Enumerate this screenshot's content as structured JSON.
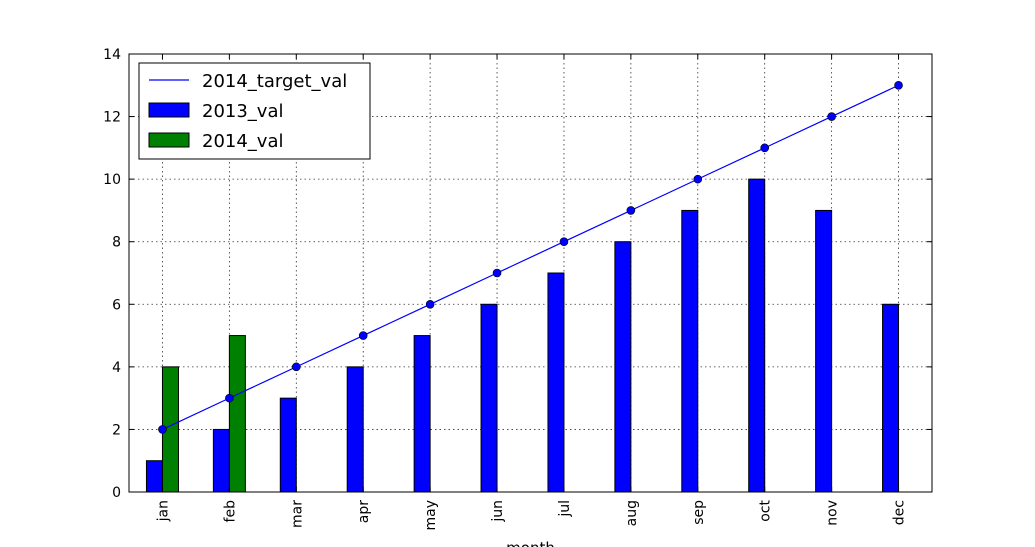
{
  "chart_data": {
    "type": "bar",
    "categories": [
      "jan",
      "feb",
      "mar",
      "apr",
      "may",
      "jun",
      "jul",
      "aug",
      "sep",
      "oct",
      "nov",
      "dec"
    ],
    "series": [
      {
        "name": "2013_val",
        "kind": "bar",
        "color": "#0000ff",
        "values": [
          1,
          2,
          3,
          4,
          5,
          6,
          7,
          8,
          9,
          10,
          9,
          6
        ]
      },
      {
        "name": "2014_val",
        "kind": "bar",
        "color": "#008000",
        "values": [
          4,
          5,
          0,
          0,
          0,
          0,
          0,
          0,
          0,
          0,
          0,
          0
        ]
      },
      {
        "name": "2014_target_val",
        "kind": "line",
        "color": "#0000ff",
        "values": [
          2,
          3,
          4,
          5,
          6,
          7,
          8,
          9,
          10,
          11,
          12,
          13
        ]
      }
    ],
    "xlabel": "month",
    "ylim": [
      0,
      14
    ],
    "yticks": [
      0,
      2,
      4,
      6,
      8,
      10,
      12,
      14
    ],
    "grid": true,
    "legend_position": "top-left"
  }
}
